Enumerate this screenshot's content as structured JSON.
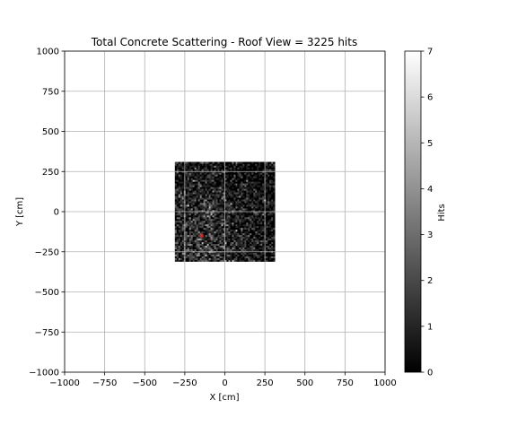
{
  "chart_data": {
    "type": "heatmap",
    "title": "Total Concrete Scattering - Roof View = 3225 hits",
    "xlabel": "X [cm]",
    "ylabel": "Y [cm]",
    "xlim": [
      -1000,
      1000
    ],
    "ylim": [
      -1000,
      1000
    ],
    "x_ticks": [
      "−1000",
      "−750",
      "−500",
      "−250",
      "0",
      "250",
      "500",
      "750",
      "1000"
    ],
    "y_ticks": [
      "−1000",
      "−750",
      "−500",
      "−250",
      "0",
      "250",
      "500",
      "750",
      "1000"
    ],
    "grid": true,
    "colormap": "greys_r",
    "hit_region": {
      "x": [
        -312,
        312
      ],
      "y": [
        -310,
        310
      ]
    },
    "bins_per_axis": 56,
    "total_hits": 3225,
    "marker": {
      "x": -145,
      "y": -150,
      "color": "#cc2a2a"
    },
    "colorbar": {
      "label": "Hits",
      "min": 0,
      "max": 7,
      "ticks": [
        "0",
        "1",
        "2",
        "3",
        "4",
        "5",
        "6",
        "7"
      ]
    }
  }
}
